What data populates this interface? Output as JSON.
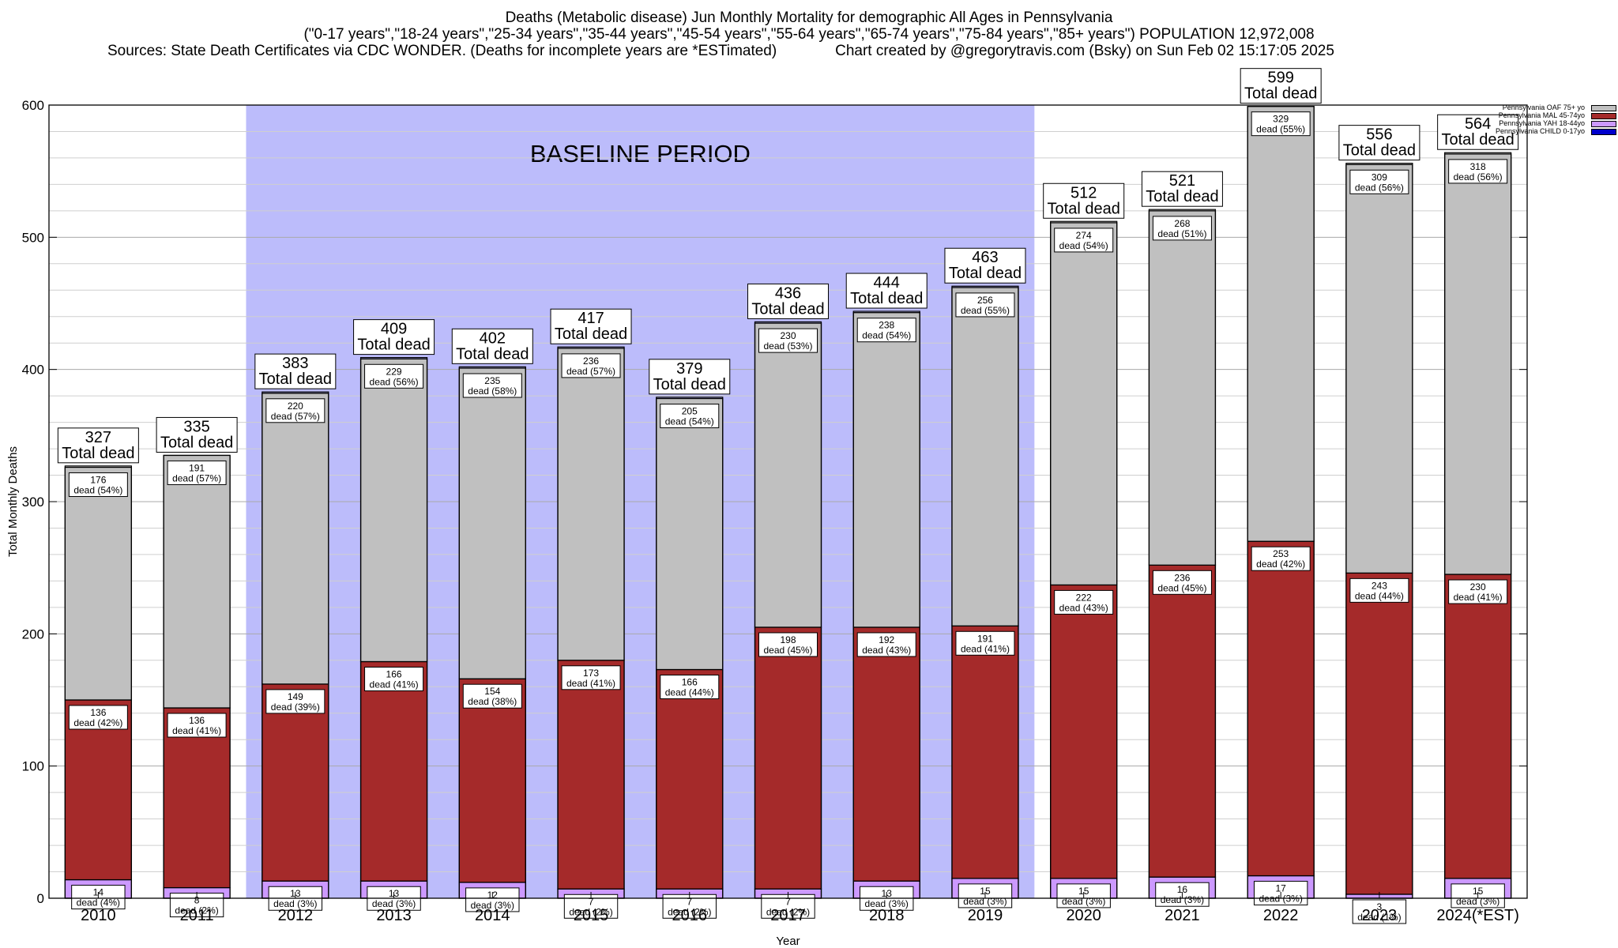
{
  "header": {
    "title": "Deaths (Metabolic disease) Jun Monthly Mortality for demographic All Ages in Pennsylvania",
    "subtitle": "(\"0-17 years\",\"18-24 years\",\"25-34 years\",\"35-44 years\",\"45-54 years\",\"55-64 years\",\"65-74 years\",\"75-84 years\",\"85+ years\") POPULATION 12,972,008",
    "sources": "Sources: State Death Certificates via CDC WONDER. (Deaths for incomplete years are *ESTimated)",
    "credit": "Chart created by @gregorytravis.com (Bsky) on Sun Feb 02 15:17:05 2025"
  },
  "chart_data": {
    "type": "bar",
    "stacked": true,
    "xlabel": "Year",
    "ylabel": "Total Monthly Deaths",
    "ylim": [
      0,
      600
    ],
    "yticks": [
      0,
      100,
      200,
      300,
      400,
      500,
      600
    ],
    "minor_step": 20,
    "grid": true,
    "legend_position": "top-right",
    "categories": [
      "2010",
      "2011",
      "2012",
      "2013",
      "2014",
      "2015",
      "2016",
      "2017",
      "2018",
      "2019",
      "2020",
      "2021",
      "2022",
      "2023",
      "2024(*EST)"
    ],
    "baseline_period": {
      "label": "BASELINE PERIOD",
      "start": "2012",
      "end": "2019",
      "color": "#bcbcfb"
    },
    "totals": [
      327,
      335,
      383,
      409,
      402,
      417,
      379,
      436,
      444,
      463,
      512,
      521,
      599,
      556,
      564
    ],
    "total_suffix": "Total dead",
    "series": [
      {
        "name": "Pennsylvania CHILD 0-17yo",
        "color": "#0000cc",
        "values": [
          0,
          0,
          0,
          0,
          0,
          0,
          0,
          0,
          0,
          0,
          0,
          0,
          0,
          0,
          0
        ],
        "labels": [
          "",
          "",
          "",
          "",
          "",
          "",
          "",
          "",
          "",
          "",
          "",
          "",
          "",
          "",
          ""
        ]
      },
      {
        "name": "Pennsylvania YAH 18-44yo",
        "color": "#cc99ff",
        "values": [
          14,
          8,
          13,
          13,
          12,
          7,
          7,
          7,
          13,
          15,
          15,
          16,
          17,
          3,
          15
        ],
        "labels": [
          "14\ndead (4%)",
          "8\ndead (2%)",
          "13\ndead (3%)",
          "13\ndead (3%)",
          "12\ndead (3%)",
          "7\ndead (2%)",
          "7\ndead (2%)",
          "7\ndead (2%)",
          "13\ndead (3%)",
          "15\ndead (3%)",
          "15\ndead (3%)",
          "16\ndead (3%)",
          "17\ndead (3%)",
          "3\ndead (1%)",
          "15\ndead (3%)"
        ]
      },
      {
        "name": "Pennsylvania MAL 45-74yo",
        "color": "#a52a2a",
        "values": [
          136,
          136,
          149,
          166,
          154,
          173,
          166,
          198,
          192,
          191,
          222,
          236,
          253,
          243,
          230
        ],
        "labels": [
          "136\ndead (42%)",
          "136\ndead (41%)",
          "149\ndead (39%)",
          "166\ndead (41%)",
          "154\ndead (38%)",
          "173\ndead (41%)",
          "166\ndead (44%)",
          "198\ndead (45%)",
          "192\ndead (43%)",
          "191\ndead (41%)",
          "222\ndead (43%)",
          "236\ndead (45%)",
          "253\ndead (42%)",
          "243\ndead (44%)",
          "230\ndead (41%)"
        ]
      },
      {
        "name": "Pennsylvania OAF 75+ yo",
        "color": "#c0c0c0",
        "values": [
          176,
          191,
          220,
          229,
          235,
          236,
          205,
          230,
          238,
          256,
          274,
          268,
          329,
          309,
          318
        ],
        "labels": [
          "176\ndead (54%)",
          "191\ndead (57%)",
          "220\ndead (57%)",
          "229\ndead (56%)",
          "235\ndead (58%)",
          "236\ndead (57%)",
          "205\ndead (54%)",
          "230\ndead (53%)",
          "238\ndead (54%)",
          "256\ndead (55%)",
          "274\ndead (54%)",
          "268\ndead (51%)",
          "329\ndead (55%)",
          "309\ndead (56%)",
          "318\ndead (56%)"
        ]
      }
    ]
  }
}
